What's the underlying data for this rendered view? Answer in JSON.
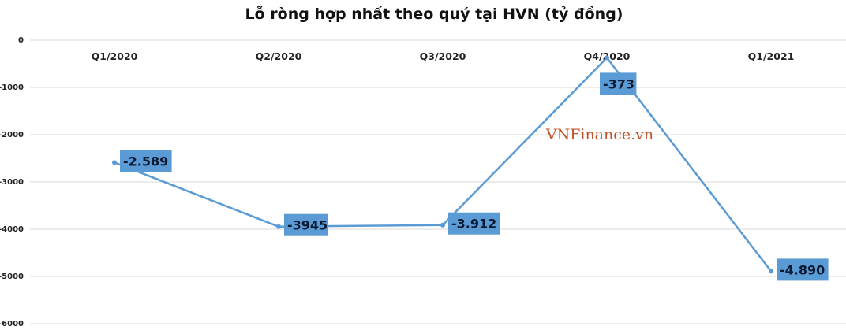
{
  "chart_data": {
    "type": "line",
    "title": "Lỗ ròng hợp nhất theo quý tại HVN (tỷ đồng)",
    "categories": [
      "Q1/2020",
      "Q2/2020",
      "Q3/2020",
      "Q4/2020",
      "Q1/2021"
    ],
    "values": [
      -2589,
      -3945,
      -3912,
      -373,
      -4890
    ],
    "data_labels": [
      "-2.589",
      "-3945",
      "-3.912",
      "-373",
      "-4.890"
    ],
    "ylim": [
      -6000,
      0
    ],
    "yticks": [
      0,
      -1000,
      -2000,
      -3000,
      -4000,
      -5000,
      -6000
    ],
    "xaxis_position": "top",
    "grid": true,
    "legend": "none",
    "line_color": "#5b9bd5",
    "label_box_color": "#5b9bd5",
    "xlabel": "",
    "ylabel": ""
  },
  "watermark": "VNFinance.vn"
}
